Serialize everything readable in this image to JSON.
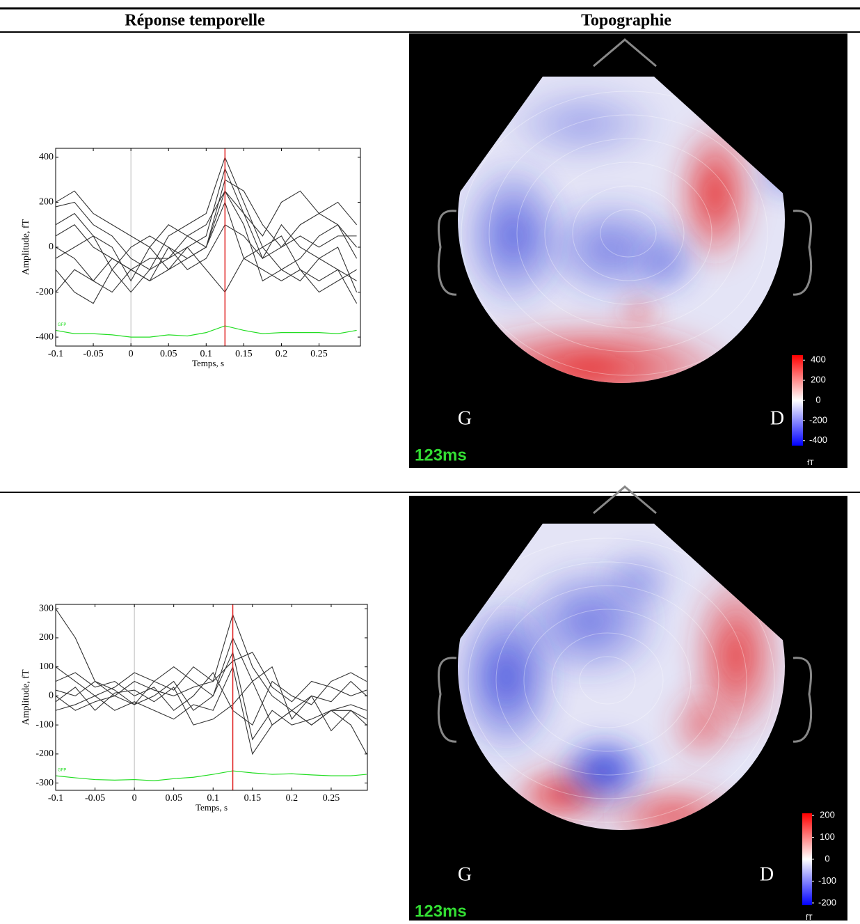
{
  "header": {
    "columns": [
      "Réponse temporelle",
      "Topographie"
    ]
  },
  "rows": [
    {
      "plot": {
        "type": "line",
        "x_label": "Temps, s",
        "y_label": "Amplitude, fT",
        "line_color": "#333333",
        "x": [
          -0.1,
          -0.075,
          -0.05,
          -0.025,
          0,
          0.025,
          0.05,
          0.075,
          0.1,
          0.125,
          0.15,
          0.175,
          0.2,
          0.225,
          0.25,
          0.275,
          0.3
        ],
        "xlim": [
          -0.1,
          0.305
        ],
        "ylim": [
          -440,
          440
        ],
        "xticks": [
          -0.1,
          -0.05,
          0,
          0.05,
          0.1,
          0.15,
          0.2,
          0.25
        ],
        "yticks": [
          -400,
          -200,
          0,
          200,
          400
        ],
        "cursor": 0.125,
        "cursor_color": "#e02020",
        "series": [
          {
            "values": [
              180,
              200,
              100,
              50,
              -50,
              -100,
              50,
              100,
              150,
              400,
              200,
              0,
              -100,
              -50,
              50,
              100,
              -50
            ]
          },
          {
            "values": [
              100,
              150,
              50,
              0,
              -150,
              0,
              -100,
              0,
              50,
              350,
              150,
              -50,
              0,
              100,
              150,
              200,
              100
            ]
          },
          {
            "values": [
              0,
              -50,
              -150,
              -200,
              -100,
              -150,
              0,
              -50,
              0,
              250,
              100,
              -150,
              -100,
              -150,
              -50,
              0,
              -200
            ]
          },
          {
            "values": [
              -100,
              -200,
              -250,
              -100,
              -200,
              -100,
              -50,
              0,
              -100,
              -200,
              -50,
              0,
              50,
              -100,
              -150,
              -100,
              -250
            ]
          },
          {
            "values": [
              50,
              100,
              0,
              -50,
              -100,
              -50,
              -50,
              50,
              0,
              300,
              250,
              100,
              0,
              50,
              0,
              50,
              50
            ]
          },
          {
            "values": [
              -200,
              -100,
              -150,
              -50,
              -100,
              -150,
              -100,
              -50,
              0,
              200,
              -50,
              -100,
              -150,
              -100,
              -200,
              -150,
              -100
            ]
          },
          {
            "values": [
              200,
              250,
              150,
              100,
              50,
              0,
              100,
              50,
              100,
              250,
              150,
              50,
              200,
              250,
              150,
              100,
              0
            ]
          },
          {
            "values": [
              -50,
              0,
              50,
              -100,
              0,
              50,
              0,
              -100,
              -50,
              100,
              50,
              -50,
              100,
              0,
              -50,
              -100,
              -150
            ]
          }
        ],
        "gfp": {
          "name": "GFP",
          "color": "#22dd22",
          "values": [
            -370,
            -385,
            -385,
            -390,
            -400,
            -400,
            -390,
            -395,
            -380,
            -350,
            -370,
            -385,
            -380,
            -380,
            -380,
            -385,
            -370
          ]
        }
      },
      "topo": {
        "left_label": "G",
        "right_label": "D",
        "time_label": "123ms",
        "unit": "fT",
        "colorbar_lim": [
          -450,
          450
        ],
        "colorbar_ticks": [
          400,
          200,
          0,
          -200,
          -400
        ]
      }
    },
    {
      "plot": {
        "type": "line",
        "x_label": "Temps, s",
        "y_label": "Amplitude, fT",
        "line_color": "#333333",
        "x": [
          -0.1,
          -0.075,
          -0.05,
          -0.025,
          0,
          0.025,
          0.05,
          0.075,
          0.1,
          0.125,
          0.15,
          0.175,
          0.2,
          0.225,
          0.25,
          0.275,
          0.295
        ],
        "xlim": [
          -0.1,
          0.296
        ],
        "ylim": [
          -325,
          315
        ],
        "xticks": [
          -0.1,
          -0.05,
          0,
          0.05,
          0.1,
          0.15,
          0.2,
          0.25
        ],
        "yticks": [
          -300,
          -200,
          -100,
          0,
          100,
          200,
          300
        ],
        "cursor": 0.125,
        "cursor_color": "#e02020",
        "series": [
          {
            "values": [
              300,
              200,
              50,
              0,
              50,
              20,
              0,
              30,
              50,
              280,
              100,
              0,
              -50,
              -100,
              -50,
              -50,
              -100
            ]
          },
          {
            "values": [
              100,
              50,
              0,
              30,
              80,
              50,
              100,
              50,
              0,
              200,
              50,
              -100,
              -50,
              0,
              -20,
              50,
              0
            ]
          },
          {
            "values": [
              0,
              -50,
              -20,
              0,
              -30,
              0,
              50,
              -50,
              0,
              150,
              -150,
              -50,
              -100,
              -80,
              -50,
              -100,
              -200
            ]
          },
          {
            "values": [
              50,
              80,
              30,
              50,
              0,
              30,
              -50,
              0,
              80,
              -50,
              -100,
              50,
              0,
              -30,
              50,
              80,
              50
            ]
          },
          {
            "values": [
              -50,
              -30,
              0,
              -50,
              -20,
              -50,
              -80,
              -30,
              -50,
              100,
              -200,
              -100,
              -50,
              -100,
              -50,
              -30,
              -50
            ]
          },
          {
            "values": [
              20,
              0,
              50,
              20,
              -30,
              50,
              20,
              100,
              50,
              120,
              150,
              30,
              -20,
              50,
              30,
              0,
              20
            ]
          },
          {
            "values": [
              -20,
              30,
              -50,
              10,
              20,
              -20,
              30,
              -100,
              -80,
              -30,
              50,
              100,
              -80,
              0,
              -120,
              -50,
              -80
            ]
          }
        ],
        "gfp": {
          "name": "GFP",
          "color": "#22dd22",
          "values": [
            -275,
            -282,
            -288,
            -290,
            -288,
            -292,
            -285,
            -280,
            -270,
            -258,
            -265,
            -270,
            -268,
            -272,
            -275,
            -275,
            -270
          ]
        }
      },
      "topo": {
        "left_label": "G",
        "right_label": "D",
        "time_label": "123ms",
        "unit": "fT",
        "colorbar_lim": [
          -210,
          210
        ],
        "colorbar_ticks": [
          200,
          100,
          0,
          -100,
          -200
        ]
      }
    }
  ]
}
